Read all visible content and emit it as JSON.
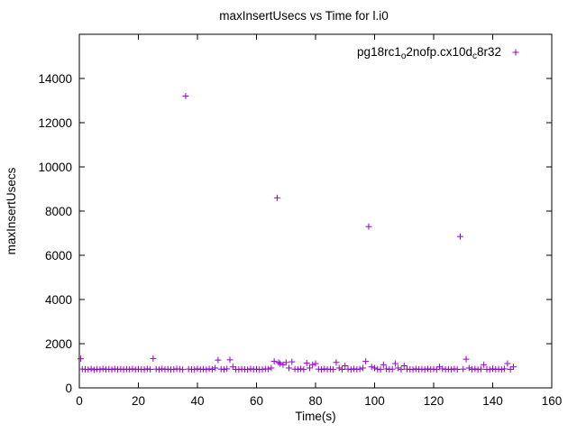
{
  "chart_data": {
    "type": "scatter",
    "title": "maxInsertUsecs vs Time for l.i0",
    "xlabel": "Time(s)",
    "ylabel": "maxInsertUsecs",
    "xlim": [
      0,
      160
    ],
    "ylim": [
      0,
      16000
    ],
    "xticks": [
      0,
      20,
      40,
      60,
      80,
      100,
      120,
      140,
      160
    ],
    "yticks": [
      0,
      2000,
      4000,
      6000,
      8000,
      10000,
      12000,
      14000
    ],
    "grid": false,
    "legend_position": "top-right-inside",
    "series": [
      {
        "name": "pg18rc1_o2nofp.cx10d_c8r32",
        "name_parts": [
          [
            "pg18rc1",
            false
          ],
          [
            "o",
            true
          ],
          [
            "2nofp.cx10d",
            false
          ],
          [
            "c",
            true
          ],
          [
            "8r32",
            false
          ]
        ],
        "marker": "plus",
        "color": "#9400D3",
        "points": [
          [
            0.5,
            1320
          ],
          [
            1,
            850
          ],
          [
            2,
            840
          ],
          [
            3,
            830
          ],
          [
            4,
            860
          ],
          [
            5,
            820
          ],
          [
            6,
            850
          ],
          [
            7,
            830
          ],
          [
            8,
            860
          ],
          [
            9,
            840
          ],
          [
            10,
            850
          ],
          [
            11,
            830
          ],
          [
            12,
            860
          ],
          [
            13,
            840
          ],
          [
            14,
            850
          ],
          [
            15,
            830
          ],
          [
            16,
            850
          ],
          [
            17,
            840
          ],
          [
            18,
            860
          ],
          [
            19,
            830
          ],
          [
            20,
            850
          ],
          [
            21,
            840
          ],
          [
            22,
            830
          ],
          [
            23,
            860
          ],
          [
            24,
            840
          ],
          [
            25,
            1330
          ],
          [
            26,
            850
          ],
          [
            27,
            830
          ],
          [
            28,
            860
          ],
          [
            29,
            840
          ],
          [
            30,
            850
          ],
          [
            31,
            830
          ],
          [
            32,
            840
          ],
          [
            33,
            860
          ],
          [
            34,
            850
          ],
          [
            35,
            830
          ],
          [
            36,
            13200
          ],
          [
            37,
            850
          ],
          [
            38,
            840
          ],
          [
            39,
            830
          ],
          [
            40,
            860
          ],
          [
            41,
            840
          ],
          [
            42,
            850
          ],
          [
            43,
            830
          ],
          [
            44,
            860
          ],
          [
            45,
            840
          ],
          [
            46,
            900
          ],
          [
            47,
            1260
          ],
          [
            48,
            850
          ],
          [
            49,
            830
          ],
          [
            50,
            860
          ],
          [
            51,
            1270
          ],
          [
            52,
            950
          ],
          [
            53,
            840
          ],
          [
            54,
            830
          ],
          [
            55,
            850
          ],
          [
            56,
            840
          ],
          [
            57,
            830
          ],
          [
            58,
            860
          ],
          [
            59,
            840
          ],
          [
            60,
            850
          ],
          [
            61,
            830
          ],
          [
            62,
            840
          ],
          [
            63,
            860
          ],
          [
            64,
            850
          ],
          [
            65,
            900
          ],
          [
            66,
            1200
          ],
          [
            67,
            8600
          ],
          [
            67.5,
            1150
          ],
          [
            68,
            1100
          ],
          [
            69,
            1050
          ],
          [
            70,
            1150
          ],
          [
            71,
            900
          ],
          [
            72,
            1180
          ],
          [
            73,
            850
          ],
          [
            74,
            840
          ],
          [
            75,
            860
          ],
          [
            76,
            830
          ],
          [
            77,
            1120
          ],
          [
            78,
            900
          ],
          [
            79,
            1050
          ],
          [
            80,
            1100
          ],
          [
            81,
            850
          ],
          [
            82,
            830
          ],
          [
            83,
            860
          ],
          [
            84,
            840
          ],
          [
            85,
            850
          ],
          [
            86,
            830
          ],
          [
            87,
            1150
          ],
          [
            88,
            900
          ],
          [
            89,
            840
          ],
          [
            90,
            1000
          ],
          [
            91,
            850
          ],
          [
            92,
            830
          ],
          [
            93,
            860
          ],
          [
            94,
            840
          ],
          [
            95,
            850
          ],
          [
            96,
            900
          ],
          [
            97,
            1200
          ],
          [
            98,
            7300
          ],
          [
            99,
            950
          ],
          [
            100,
            900
          ],
          [
            101,
            850
          ],
          [
            102,
            830
          ],
          [
            103,
            1050
          ],
          [
            104,
            860
          ],
          [
            105,
            840
          ],
          [
            106,
            850
          ],
          [
            107,
            1100
          ],
          [
            108,
            900
          ],
          [
            109,
            830
          ],
          [
            110,
            1000
          ],
          [
            111,
            850
          ],
          [
            112,
            840
          ],
          [
            113,
            830
          ],
          [
            114,
            860
          ],
          [
            115,
            840
          ],
          [
            116,
            850
          ],
          [
            117,
            830
          ],
          [
            118,
            860
          ],
          [
            119,
            840
          ],
          [
            120,
            850
          ],
          [
            121,
            830
          ],
          [
            122,
            950
          ],
          [
            123,
            860
          ],
          [
            124,
            840
          ],
          [
            125,
            850
          ],
          [
            126,
            830
          ],
          [
            127,
            860
          ],
          [
            128,
            840
          ],
          [
            129,
            6850
          ],
          [
            130,
            850
          ],
          [
            131,
            1300
          ],
          [
            132,
            900
          ],
          [
            133,
            840
          ],
          [
            134,
            860
          ],
          [
            135,
            830
          ],
          [
            136,
            850
          ],
          [
            137,
            1050
          ],
          [
            138,
            840
          ],
          [
            139,
            830
          ],
          [
            140,
            860
          ],
          [
            141,
            840
          ],
          [
            142,
            850
          ],
          [
            143,
            830
          ],
          [
            144,
            860
          ],
          [
            145,
            1100
          ],
          [
            146,
            840
          ],
          [
            147,
            950
          ]
        ]
      }
    ],
    "colors": {
      "marker": "#9400D3",
      "axis": "#000000",
      "background": "#FFFFFF"
    }
  }
}
